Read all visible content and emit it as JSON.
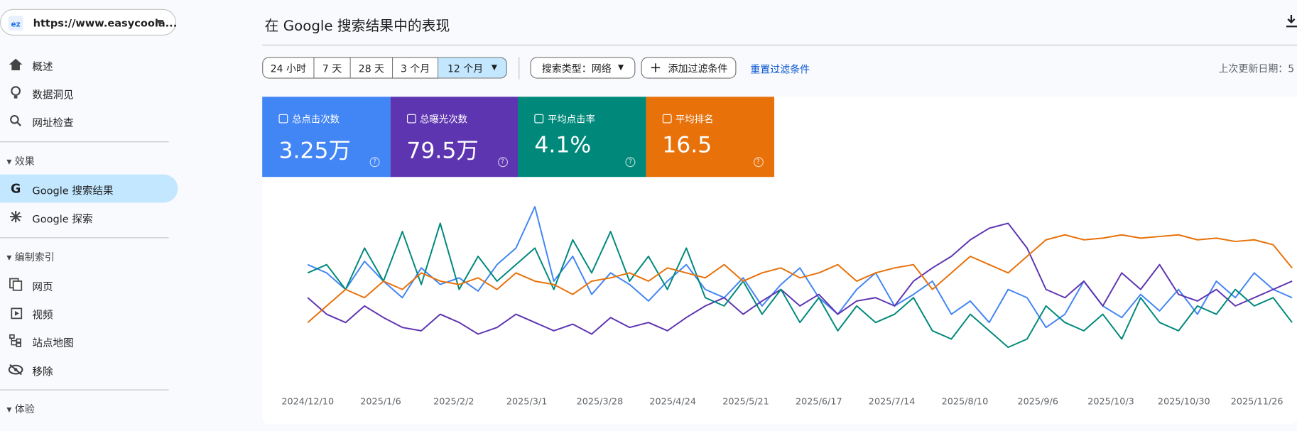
{
  "site": "https://www.easycoola...",
  "nav": {
    "overview": "概述",
    "insights": "数据洞见",
    "inspect": "网址检查",
    "sec_performance": "效果",
    "google_search": "Google 搜索结果",
    "google_discover": "Google 探索",
    "sec_indexing": "编制索引",
    "pages": "网页",
    "videos": "视频",
    "sitemaps": "站点地图",
    "removals": "移除",
    "sec_experience": "体验"
  },
  "page_title": "在 Google 搜索结果中的表现",
  "date_ranges": [
    "24 小时",
    "7 天",
    "28 天",
    "3 个月",
    "12 个月"
  ],
  "search_type": "搜索类型：网络",
  "add_filter": "添加过滤条件",
  "reset_filter": "重置过滤条件",
  "last_updated": "上次更新日期：5",
  "cards": [
    {
      "label": "总点击次数",
      "value": "3.25万"
    },
    {
      "label": "总曝光次数",
      "value": "79.5万"
    },
    {
      "label": "平均点击率",
      "value": "4.1%"
    },
    {
      "label": "平均排名",
      "value": "16.5"
    }
  ],
  "chart_data": {
    "type": "line",
    "x": [
      0,
      7,
      14,
      21,
      28,
      35,
      42,
      49,
      56,
      63,
      70,
      77,
      84,
      91,
      98,
      105,
      112,
      119,
      126,
      133,
      140,
      147,
      154,
      161,
      168,
      175,
      182,
      189,
      196,
      203,
      210,
      217,
      224,
      231,
      238,
      245,
      252,
      259,
      266,
      273,
      280,
      287,
      294,
      301,
      308,
      315,
      322,
      329,
      336,
      343,
      350,
      357,
      364
    ],
    "xlim": [
      0,
      364
    ],
    "xticks": [
      {
        "value": 0,
        "label": "2024/12/10"
      },
      {
        "value": 27,
        "label": "2025/1/6"
      },
      {
        "value": 54,
        "label": "2025/2/2"
      },
      {
        "value": 81,
        "label": "2025/3/1"
      },
      {
        "value": 108,
        "label": "2025/3/28"
      },
      {
        "value": 135,
        "label": "2025/4/24"
      },
      {
        "value": 162,
        "label": "2025/5/21"
      },
      {
        "value": 189,
        "label": "2025/6/17"
      },
      {
        "value": 216,
        "label": "2025/7/14"
      },
      {
        "value": 243,
        "label": "2025/8/10"
      },
      {
        "value": 270,
        "label": "2025/9/6"
      },
      {
        "value": 297,
        "label": "2025/10/3"
      },
      {
        "value": 324,
        "label": "2025/10/30"
      },
      {
        "value": 351,
        "label": "2025/11/26"
      }
    ],
    "ylim": [
      0,
      100
    ],
    "series": [
      {
        "name": "总点击次数",
        "color": "#4285f4",
        "values": [
          60,
          55,
          45,
          62,
          50,
          40,
          58,
          48,
          52,
          44,
          60,
          70,
          95,
          50,
          65,
          42,
          55,
          48,
          38,
          50,
          60,
          45,
          40,
          52,
          35,
          48,
          58,
          40,
          30,
          45,
          55,
          35,
          42,
          50,
          30,
          38,
          25,
          45,
          40,
          22,
          30,
          50,
          35,
          28,
          42,
          32,
          45,
          30,
          50,
          40,
          55,
          45,
          40
        ]
      },
      {
        "name": "总曝光次数",
        "color": "#5e35b1",
        "values": [
          40,
          30,
          25,
          35,
          28,
          22,
          20,
          30,
          25,
          18,
          22,
          30,
          25,
          20,
          24,
          18,
          28,
          22,
          25,
          20,
          28,
          35,
          40,
          30,
          38,
          45,
          35,
          42,
          30,
          38,
          40,
          35,
          50,
          58,
          65,
          75,
          82,
          85,
          70,
          45,
          40,
          50,
          35,
          55,
          45,
          60,
          42,
          38,
          45,
          35,
          40,
          45,
          50
        ]
      },
      {
        "name": "平均点击率",
        "color": "#00897b",
        "values": [
          55,
          60,
          45,
          70,
          50,
          80,
          48,
          85,
          45,
          65,
          50,
          60,
          70,
          45,
          75,
          55,
          80,
          50,
          65,
          45,
          70,
          40,
          35,
          50,
          30,
          45,
          25,
          40,
          20,
          35,
          25,
          30,
          40,
          20,
          15,
          30,
          20,
          10,
          15,
          35,
          25,
          20,
          30,
          15,
          40,
          25,
          20,
          35,
          30,
          45,
          35,
          40,
          25
        ]
      },
      {
        "name": "平均排名",
        "color": "#e8710a",
        "values": [
          25,
          35,
          45,
          40,
          50,
          45,
          55,
          50,
          48,
          52,
          45,
          55,
          50,
          48,
          42,
          50,
          52,
          55,
          50,
          58,
          55,
          52,
          60,
          50,
          55,
          58,
          52,
          55,
          60,
          50,
          55,
          58,
          60,
          45,
          55,
          65,
          60,
          55,
          65,
          75,
          78,
          75,
          76,
          78,
          76,
          77,
          78,
          75,
          76,
          74,
          75,
          72,
          58
        ]
      }
    ]
  }
}
